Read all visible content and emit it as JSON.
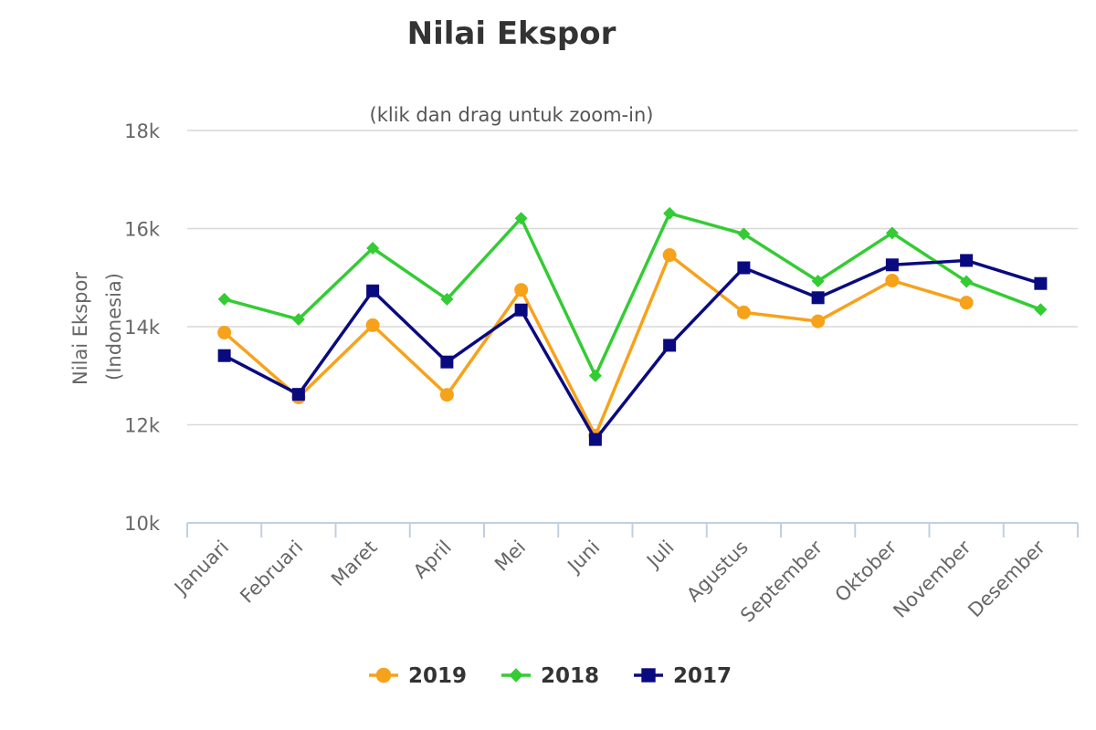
{
  "chart_data": {
    "type": "line",
    "title": "Nilai Ekspor",
    "subtitle": "(klik dan drag untuk zoom-in)",
    "ylabel_line1": "Nilai Ekspor",
    "ylabel_line2": "(Indonesia)",
    "xlabel": "",
    "ylim": [
      10000,
      18000
    ],
    "yticks": [
      10000,
      12000,
      14000,
      16000,
      18000
    ],
    "ytick_labels": [
      "10k",
      "12k",
      "14k",
      "16k",
      "18k"
    ],
    "grid": true,
    "legend_position": "bottom",
    "categories": [
      "Januari",
      "Februari",
      "Maret",
      "April",
      "Mei",
      "Juni",
      "Juli",
      "Agustus",
      "September",
      "Oktober",
      "November",
      "Desember"
    ],
    "series": [
      {
        "name": "2019",
        "color": "#f7a21b",
        "marker": "circle",
        "values": [
          13880,
          12560,
          14030,
          12610,
          14750,
          11780,
          15460,
          14290,
          14110,
          14940,
          14490,
          null
        ]
      },
      {
        "name": "2018",
        "color": "#33cc33",
        "marker": "diamond",
        "values": [
          14560,
          14150,
          15600,
          14560,
          16210,
          13000,
          16310,
          15890,
          14930,
          15910,
          14920,
          14350
        ]
      },
      {
        "name": "2017",
        "color": "#0a0a80",
        "marker": "square",
        "values": [
          13410,
          12620,
          14730,
          13280,
          14340,
          11700,
          13620,
          15200,
          14590,
          15260,
          15350,
          14880
        ]
      }
    ]
  }
}
